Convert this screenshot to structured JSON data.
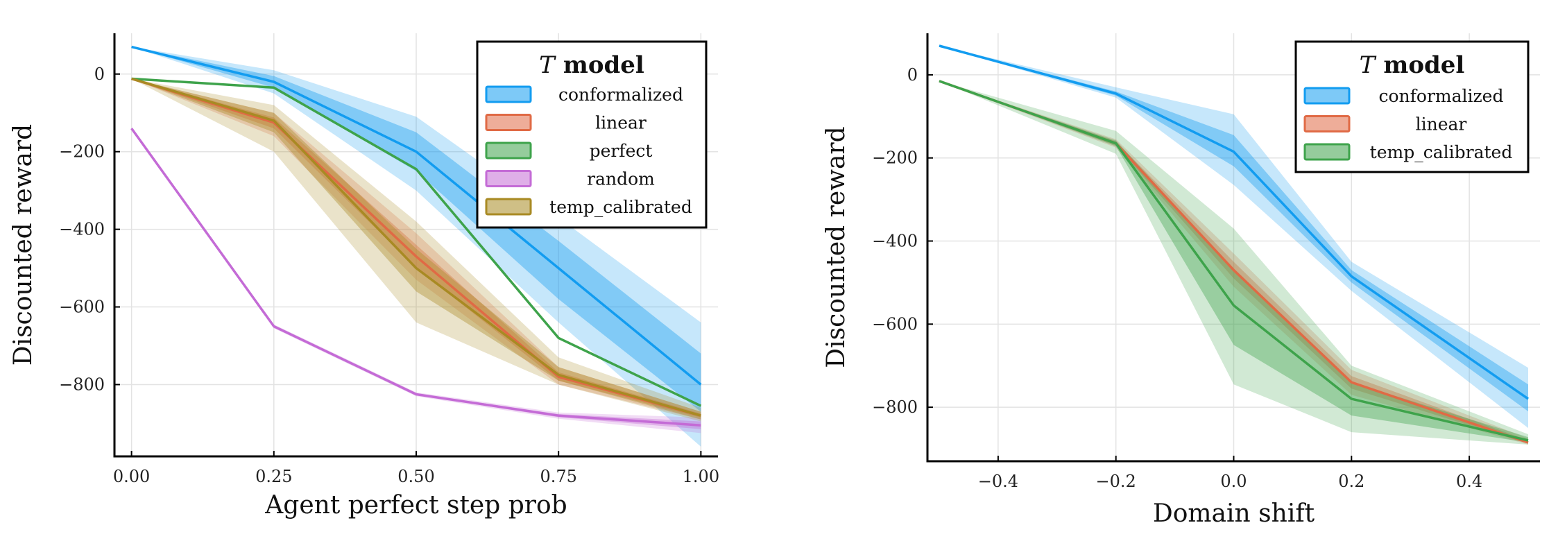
{
  "chart_data": [
    {
      "type": "line",
      "xlabel": "Agent perfect step prob",
      "ylabel": "Discounted reward",
      "xlim": [
        -0.03,
        1.03
      ],
      "ylim": [
        -985,
        105
      ],
      "xticks": [
        0,
        0.25,
        0.5,
        0.75,
        1
      ],
      "xtick_labels": [
        "0.00",
        "0.25",
        "0.50",
        "0.75",
        "1.00"
      ],
      "yticks": [
        0,
        -200,
        -400,
        -600,
        -800
      ],
      "ytick_labels": [
        "0",
        "−200",
        "−400",
        "−600",
        "−800"
      ],
      "grid": true,
      "legend": {
        "title_italic": "T",
        "title_bold": "model",
        "placement": "top-right"
      },
      "x": [
        0,
        0.25,
        0.5,
        0.75,
        1
      ],
      "series": [
        {
          "name": "conformalized",
          "color": "#129cf0",
          "values": [
            70,
            -20,
            -200,
            -500,
            -800
          ],
          "inner_lo": [
            70,
            -35,
            -250,
            -580,
            -870
          ],
          "inner_hi": [
            70,
            -5,
            -150,
            -430,
            -720
          ],
          "outer_lo": [
            70,
            -50,
            -300,
            -640,
            -960
          ],
          "outer_hi": [
            70,
            10,
            -110,
            -370,
            -640
          ]
        },
        {
          "name": "linear",
          "color": "#e06a45",
          "values": [
            -12,
            -125,
            -470,
            -780,
            -880
          ],
          "inner_lo": [
            -12,
            -140,
            -500,
            -790,
            -885
          ],
          "inner_hi": [
            -12,
            -112,
            -440,
            -768,
            -875
          ],
          "outer_lo": [
            -12,
            -160,
            -530,
            -800,
            -890
          ],
          "outer_hi": [
            -12,
            -100,
            -410,
            -755,
            -870
          ]
        },
        {
          "name": "perfect",
          "color": "#3ea34b",
          "values": [
            -12,
            -35,
            -245,
            -680,
            -855
          ]
        },
        {
          "name": "random",
          "color": "#c46bd6",
          "values": [
            -140,
            -650,
            -825,
            -880,
            -905
          ],
          "inner_lo": [
            -140,
            -652,
            -827,
            -884,
            -915
          ],
          "inner_hi": [
            -140,
            -648,
            -823,
            -876,
            -895
          ],
          "outer_lo": [
            -140,
            -655,
            -830,
            -888,
            -925
          ],
          "outer_hi": [
            -140,
            -645,
            -820,
            -872,
            -885
          ]
        },
        {
          "name": "temp_calibrated",
          "color": "#a88a23",
          "values": [
            -12,
            -120,
            -500,
            -775,
            -880
          ],
          "inner_lo": [
            -12,
            -150,
            -560,
            -790,
            -890
          ],
          "inner_hi": [
            -12,
            -100,
            -450,
            -755,
            -870
          ],
          "outer_lo": [
            -12,
            -200,
            -640,
            -800,
            -895
          ],
          "outer_hi": [
            -12,
            -80,
            -380,
            -730,
            -860
          ]
        }
      ]
    },
    {
      "type": "line",
      "xlabel": "Domain shift",
      "ylabel": "Discounted reward",
      "xlim": [
        -0.52,
        0.52
      ],
      "ylim": [
        -930,
        100
      ],
      "xticks": [
        -0.4,
        -0.2,
        0,
        0.2,
        0.4
      ],
      "xtick_labels": [
        "−0.4",
        "−0.2",
        "0.0",
        "0.2",
        "0.4"
      ],
      "yticks": [
        0,
        -200,
        -400,
        -600,
        -800
      ],
      "ytick_labels": [
        "0",
        "−200",
        "−400",
        "−600",
        "−800"
      ],
      "grid": true,
      "legend": {
        "title_italic": "T",
        "title_bold": "model",
        "placement": "top-right"
      },
      "x": [
        -0.5,
        -0.2,
        0,
        0.2,
        0.5
      ],
      "series": [
        {
          "name": "conformalized",
          "color": "#129cf0",
          "values": [
            70,
            -45,
            -185,
            -485,
            -780
          ],
          "inner_lo": [
            70,
            -50,
            -220,
            -500,
            -810
          ],
          "inner_hi": [
            70,
            -40,
            -145,
            -470,
            -745
          ],
          "outer_lo": [
            70,
            -55,
            -265,
            -520,
            -850
          ],
          "outer_hi": [
            70,
            -30,
            -95,
            -450,
            -705
          ]
        },
        {
          "name": "linear",
          "color": "#e06a45",
          "values": [
            -15,
            -165,
            -470,
            -740,
            -885
          ],
          "inner_lo": [
            -15,
            -170,
            -490,
            -755,
            -888
          ],
          "inner_hi": [
            -15,
            -160,
            -450,
            -725,
            -880
          ],
          "outer_lo": [
            -15,
            -175,
            -510,
            -770,
            -890
          ],
          "outer_hi": [
            -15,
            -155,
            -430,
            -710,
            -875
          ]
        },
        {
          "name": "temp_calibrated",
          "color": "#3ea34b",
          "values": [
            -15,
            -165,
            -555,
            -780,
            -880
          ],
          "inner_lo": [
            -15,
            -172,
            -650,
            -820,
            -885
          ],
          "inner_hi": [
            -15,
            -158,
            -470,
            -740,
            -872
          ],
          "outer_lo": [
            -15,
            -190,
            -745,
            -860,
            -890
          ],
          "outer_hi": [
            -15,
            -135,
            -370,
            -700,
            -865
          ]
        }
      ]
    }
  ]
}
